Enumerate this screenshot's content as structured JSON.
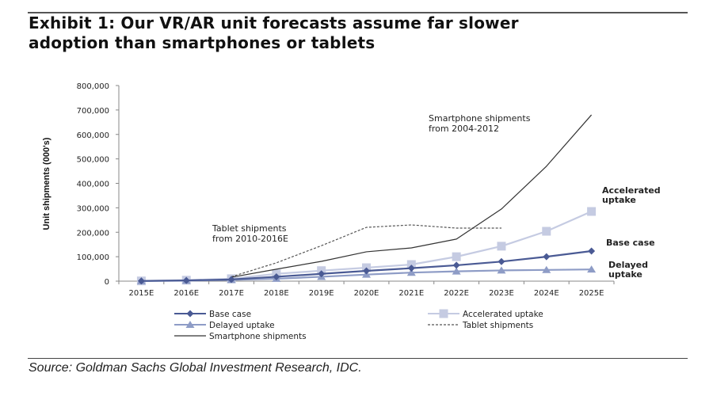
{
  "header": {
    "title_line1": "Exhibit 1: Our VR/AR unit forecasts assume far slower",
    "title_line2": "adoption than smartphones or tablets"
  },
  "footer": {
    "source": "Source: Goldman Sachs Global Investment Research, IDC."
  },
  "chart_data": {
    "type": "line",
    "title": "Exhibit 1: Our VR/AR unit forecasts assume far slower adoption than smartphones or tablets",
    "xlabel": "",
    "ylabel": "Unit shipments (000's)",
    "ylim": [
      0,
      800000
    ],
    "yticks": [
      0,
      100000,
      200000,
      300000,
      400000,
      500000,
      600000,
      700000,
      800000
    ],
    "ytick_labels": [
      "0",
      "100,000",
      "200,000",
      "300,000",
      "400,000",
      "500,000",
      "600,000",
      "700,000",
      "800,000"
    ],
    "categories": [
      "2015E",
      "2016E",
      "2017E",
      "2018E",
      "2019E",
      "2020E",
      "2021E",
      "2022E",
      "2023E",
      "2024E",
      "2025E"
    ],
    "grid": false,
    "legend_position": "bottom",
    "series": [
      {
        "name": "Base case",
        "color": "#4a5a94",
        "marker": "diamond",
        "dash": "solid",
        "values": [
          1000,
          3000,
          7000,
          18000,
          30000,
          42000,
          53000,
          65000,
          80000,
          100000,
          123000
        ]
      },
      {
        "name": "Accelerated uptake",
        "color": "#c5cbe2",
        "marker": "square",
        "dash": "solid",
        "values": [
          1000,
          4000,
          10000,
          30000,
          43000,
          55000,
          68000,
          100000,
          143000,
          204000,
          285000
        ]
      },
      {
        "name": "Delayed uptake",
        "color": "#8e9cc6",
        "marker": "triangle",
        "dash": "solid",
        "values": [
          500,
          2000,
          5000,
          10000,
          18000,
          27000,
          35000,
          40000,
          44000,
          46000,
          48000
        ]
      },
      {
        "name": "Tablet shipments",
        "color": "#555555",
        "marker": "none",
        "dash": "dashed",
        "values": [
          null,
          null,
          18000,
          75000,
          145000,
          220000,
          230000,
          217000,
          217000,
          null,
          null
        ]
      },
      {
        "name": "Smartphone shipments",
        "color": "#333333",
        "marker": "none",
        "dash": "solid",
        "values": [
          null,
          null,
          16000,
          49000,
          81000,
          120000,
          136000,
          172000,
          295000,
          470000,
          680000
        ]
      }
    ],
    "annotations": {
      "smartphone_line1": "Smartphone shipments",
      "smartphone_line2": "from 2004-2012",
      "tablet_line1": "Tablet shipments",
      "tablet_line2": "from 2010-2016E",
      "accelerated_line1": "Accelerated",
      "accelerated_line2": "uptake",
      "base_label": "Base case",
      "delayed_line1": "Delayed",
      "delayed_line2": "uptake"
    }
  }
}
